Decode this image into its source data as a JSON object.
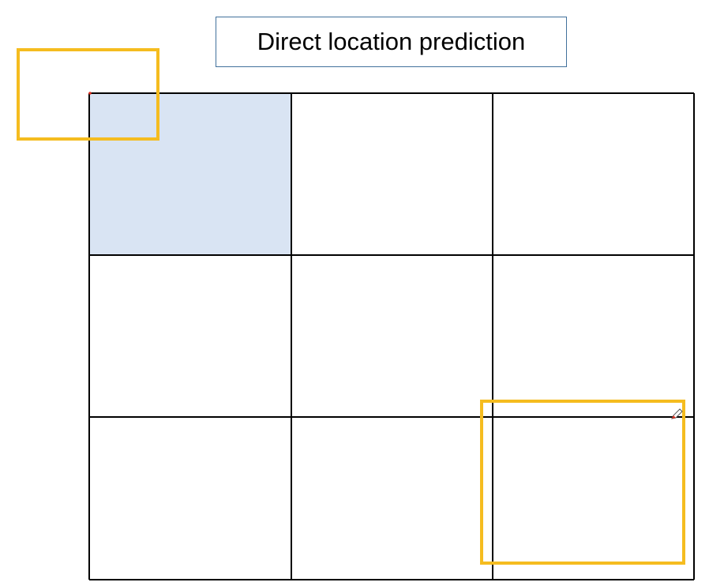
{
  "title": "Direct location prediction",
  "grid": {
    "rows": 3,
    "cols": 3,
    "highlighted_cell": {
      "row": 0,
      "col": 0
    }
  },
  "colors": {
    "grid_line": "#000000",
    "highlight_fill": "#d9e4f3",
    "box_stroke": "#f5bc1f",
    "title_border": "#41719c",
    "title_text": "#000000",
    "marker": "#e03020"
  },
  "icons": {
    "cursor": "pencil-cursor-icon"
  }
}
